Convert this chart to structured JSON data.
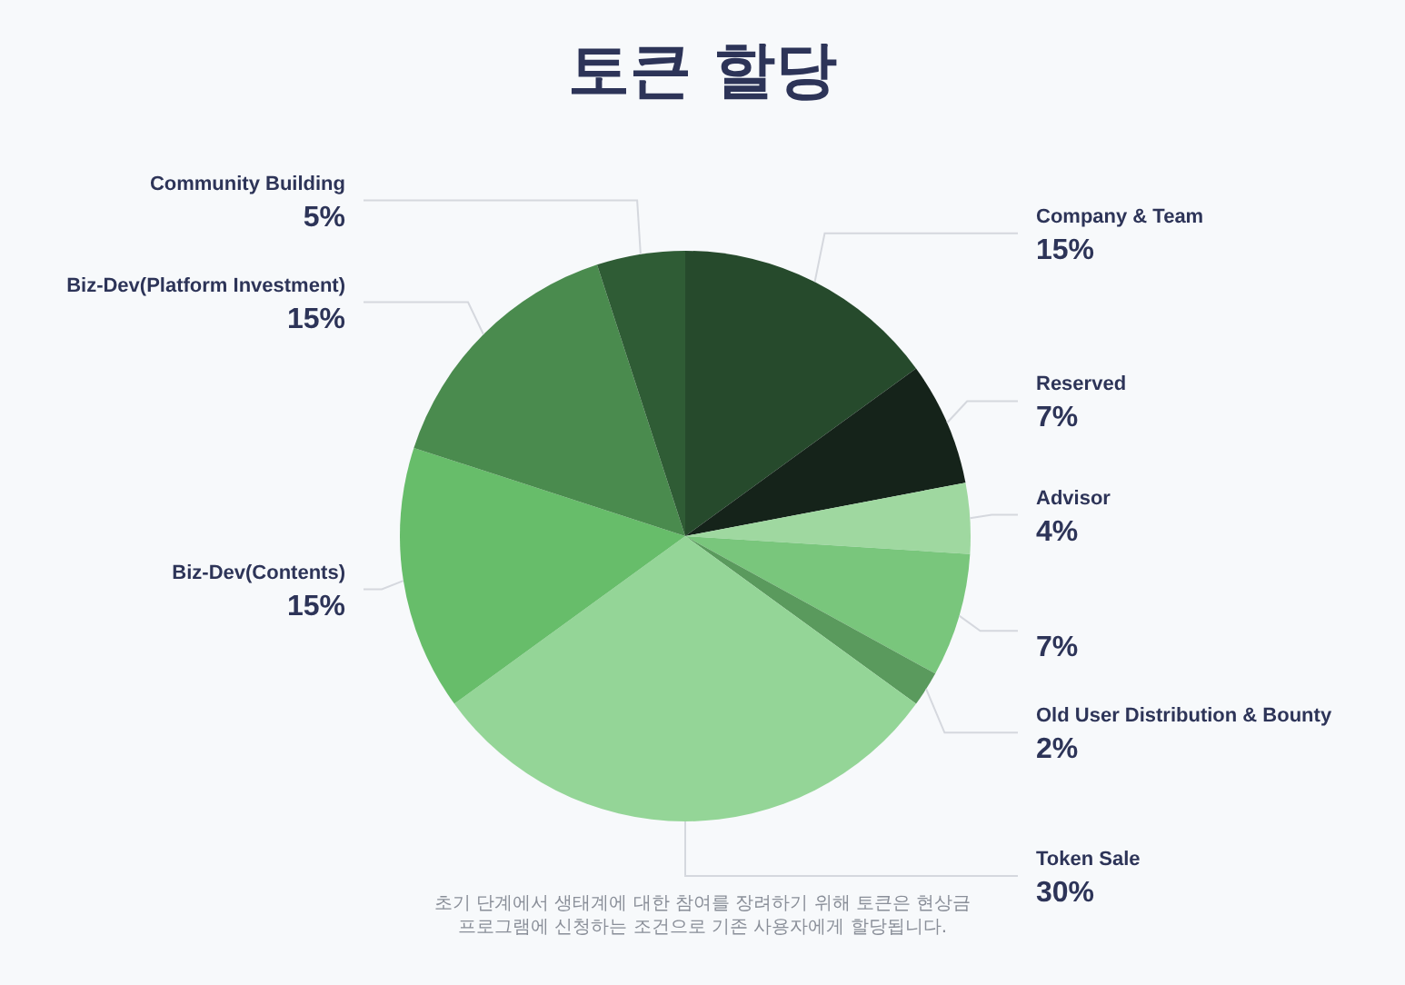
{
  "chart_data": {
    "type": "pie",
    "title": "토큰 할당",
    "categories": [
      "Company & Team",
      "Reserved",
      "Advisor",
      null,
      "Old User Distribution & Bounty",
      "Token Sale",
      "Biz-Dev(Contents)",
      "Biz-Dev(Platform Investment)",
      "Community Building"
    ],
    "values": [
      15,
      7,
      4,
      7,
      2,
      30,
      15,
      15,
      5
    ],
    "colors": [
      "#264a2c",
      "#15231a",
      "#9fd8a0",
      "#79c67c",
      "#5a9a5d",
      "#94d597",
      "#67bd6a",
      "#4a8b4e",
      "#2f5c35"
    ],
    "value_labels": [
      "15%",
      "7%",
      "4%",
      "7%",
      "2%",
      "30%",
      "15%",
      "15%",
      "5%"
    ],
    "annotations": [
      "초기 단계에서 생태계에 대한 참여를 장려하기 위해 토큰은 현상금 프로그램에 신청하는 조건으로 기존 사용자에게 할당됩니다."
    ]
  }
}
